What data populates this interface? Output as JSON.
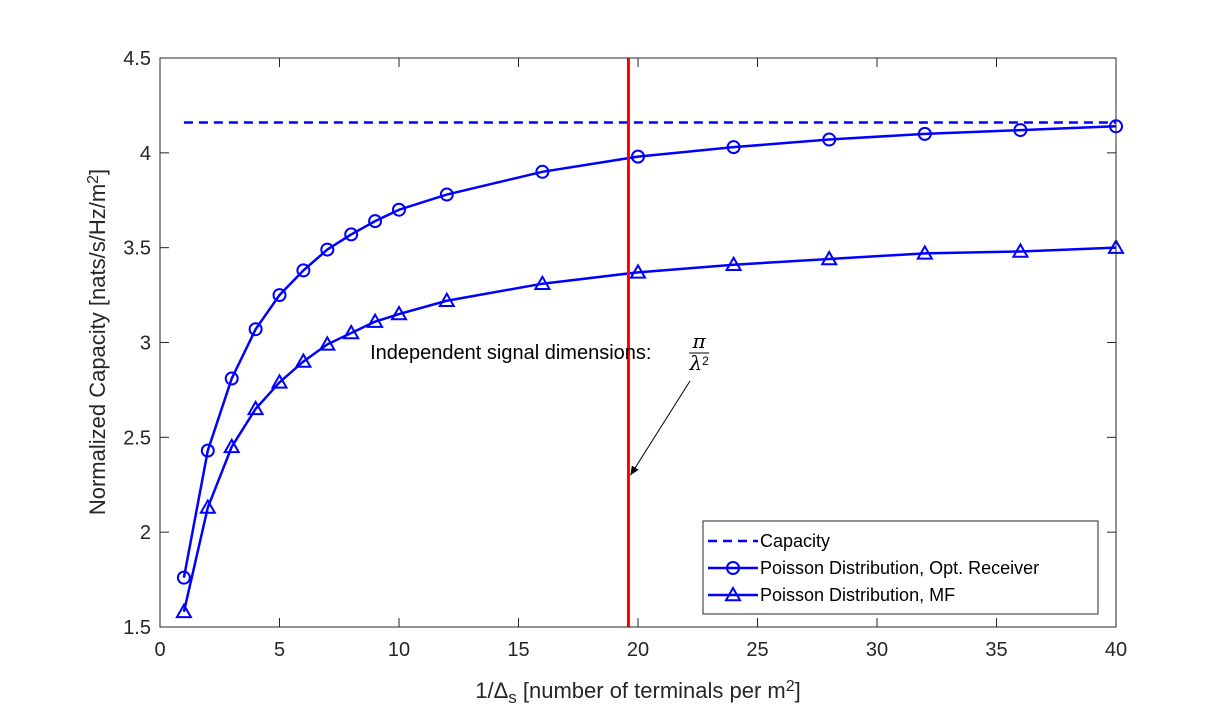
{
  "chart_data": {
    "type": "line",
    "title": "",
    "xlabel": {
      "prefix": "1/Δ",
      "subscript": "s",
      "middle": " [number of terminals per m",
      "superscript": "2",
      "suffix": "]"
    },
    "ylabel": {
      "base": "Normalized Capacity [nats/s/Hz/m",
      "superscript": "2",
      "suffix": "]"
    },
    "xlim": [
      0,
      40
    ],
    "ylim": [
      1.5,
      4.5
    ],
    "xticks": [
      0,
      5,
      10,
      15,
      20,
      25,
      30,
      35,
      40
    ],
    "yticks": [
      1.5,
      2,
      2.5,
      3,
      3.5,
      4,
      4.5
    ],
    "xtick_labels": [
      "0",
      "5",
      "10",
      "15",
      "20",
      "25",
      "30",
      "35",
      "40"
    ],
    "ytick_labels": [
      "1.5",
      "2",
      "2.5",
      "3",
      "3.5",
      "4",
      "4.5"
    ],
    "grid": false,
    "legend_position": "bottom-right",
    "series": [
      {
        "name": "Capacity",
        "style": "dashed",
        "marker": "none",
        "color": "#0000ff",
        "x": [
          1,
          40
        ],
        "y": [
          4.16,
          4.16
        ]
      },
      {
        "name": "Poisson Distribution, Opt. Receiver",
        "style": "solid",
        "marker": "circle",
        "color": "#0000ff",
        "x": [
          1,
          2,
          3,
          4,
          5,
          6,
          7,
          8,
          9,
          10,
          12,
          16,
          20,
          24,
          28,
          32,
          36,
          40
        ],
        "y": [
          1.76,
          2.43,
          2.81,
          3.07,
          3.25,
          3.38,
          3.49,
          3.57,
          3.64,
          3.7,
          3.78,
          3.9,
          3.98,
          4.03,
          4.07,
          4.1,
          4.12,
          4.14
        ]
      },
      {
        "name": "Poisson Distribution, MF",
        "style": "solid",
        "marker": "triangle",
        "color": "#0000ff",
        "x": [
          1,
          2,
          3,
          4,
          5,
          6,
          7,
          8,
          9,
          10,
          12,
          16,
          20,
          24,
          28,
          32,
          36,
          40
        ],
        "y": [
          1.58,
          2.13,
          2.45,
          2.65,
          2.79,
          2.9,
          2.99,
          3.05,
          3.11,
          3.15,
          3.22,
          3.31,
          3.37,
          3.41,
          3.44,
          3.47,
          3.48,
          3.5
        ]
      }
    ],
    "vertical_line": {
      "x": 19.6,
      "color": "#ff0000"
    },
    "annotation": {
      "text": "Independent signal dimensions: ",
      "fraction_numerator": "π",
      "fraction_denominator_base": "λ",
      "fraction_denominator_superscript": "2",
      "arrow_target": {
        "x": 19.6,
        "y": 2.3
      },
      "text_anchor": {
        "x": 22.6,
        "y": 2.95
      }
    },
    "colors": {
      "series": "#0000ff",
      "vline": "#ff0000",
      "axis": "#262626"
    }
  }
}
